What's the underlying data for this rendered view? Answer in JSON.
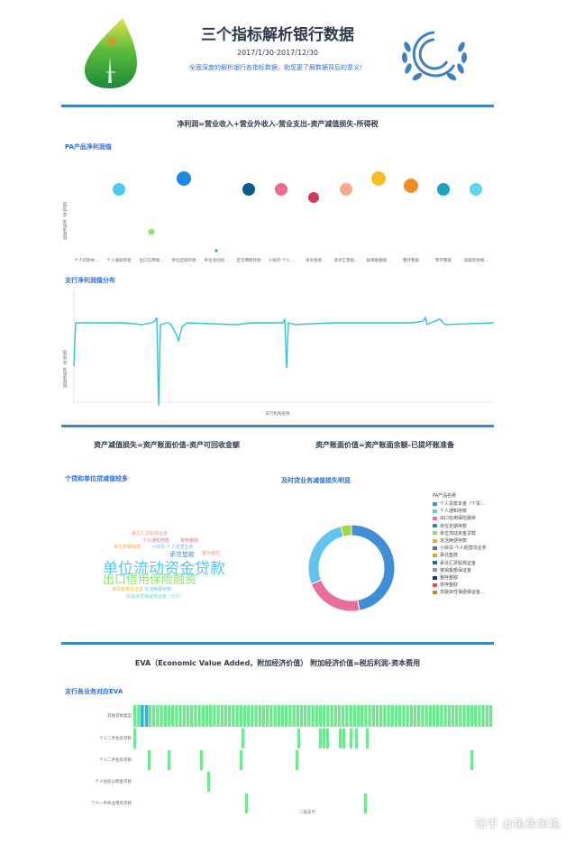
{
  "header": {
    "title": "三个指标解析银行数据",
    "date_range": "2017/1/30-2017/12/30",
    "subtitle": "全面深度的解析银行各指标数据，助您更了解数据背后的意义！"
  },
  "section1": {
    "formula": "净利润=营业收入+营业外收入-营业支出-资产减值损失-所得税",
    "chart1": {
      "title": "PA产品净利润值",
      "ylabel": "指标净利润（平均值）",
      "categories": [
        "个人贷款本...",
        "个人通知存款",
        "出口信用保...",
        "单位定期存款",
        "单位流动资...",
        "定活两便存款",
        "小快贷-个人...",
        "承兑垫款",
        "承兑汇票贴...",
        "按揭金额保...",
        "整存整取",
        "零存整取",
        "非融资性保..."
      ],
      "colors": [
        "#4fc8f3",
        "#8de46a",
        "#1e88e5",
        "#1565c0",
        "#0b5b94",
        "#f06c8b",
        "#d23a5a",
        "#f7a98f",
        "#f5c026",
        "#f08c2a",
        "#1aa3c2",
        "#5bd8f0"
      ]
    },
    "chart2": {
      "title": "支行净利润值分布",
      "ylabel": "指标净利润（平均值）",
      "xlabel": "支行机构名称"
    }
  },
  "section2": {
    "formula_left": "资产减值损失=资产账面价值-资产可回收金额",
    "formula_right": "资产账面价值=资产账面余额-已提坏账准备",
    "wordcloud_title": "个贷和单位贷减值较多",
    "donut_title": "及时贷业务减值损失明显",
    "legend_title": "PA产品名称",
    "legend": [
      {
        "label": "个人贷款本金（个贷...",
        "color": "#3f8ed6"
      },
      {
        "label": "个人通知存款",
        "color": "#62c4ee"
      },
      {
        "label": "出口信用保险融资",
        "color": "#e86f9a"
      },
      {
        "label": "单位定期存款",
        "color": "#2a8c8c"
      },
      {
        "label": "单位流动资金贷款",
        "color": "#9bd36a"
      },
      {
        "label": "定活两便存款",
        "color": "#f4a35f"
      },
      {
        "label": "小快贷-个人经营贷业务",
        "color": "#6d6d6d"
      },
      {
        "label": "承兑垫款",
        "color": "#c7b62d"
      },
      {
        "label": "承兑汇票贴现证金",
        "color": "#1d6e8c"
      },
      {
        "label": "按揭金额保证金",
        "color": "#9b8ec9"
      },
      {
        "label": "整存整取",
        "color": "#1a2f6a"
      },
      {
        "label": "零存整取",
        "color": "#e84a4a"
      },
      {
        "label": "非融资性保函保证金...",
        "color": "#b78a2a"
      }
    ],
    "words": [
      {
        "text": "承兑汇票贴现证金",
        "color": "#f29a7a",
        "size": 5
      },
      {
        "text": "个人通知存款",
        "color": "#e56b8f",
        "size": 5
      },
      {
        "text": "零存整取",
        "color": "#e56b8f",
        "size": 5
      },
      {
        "text": "小快贷-个人经营业务",
        "color": "#7fb8e6",
        "size": 5
      },
      {
        "text": "单位定期存款",
        "color": "#f7a14a",
        "size": 5
      },
      {
        "text": "承兑垫款",
        "color": "#3f8ed6",
        "size": 7
      },
      {
        "text": "整存整取",
        "color": "#f29a7a",
        "size": 5
      },
      {
        "text": "单位流动资金贷款",
        "color": "#4fc8f3",
        "size": 17
      },
      {
        "text": "出口信用保险融资",
        "color": "#8de46a",
        "size": 13
      },
      {
        "text": "按揭金额保证金",
        "color": "#f5c026",
        "size": 5
      },
      {
        "text": "定活两便存款",
        "color": "#4fc8f3",
        "size": 5
      },
      {
        "text": "非融资性保函保证金（分行）",
        "color": "#6fd2c4",
        "size": 5
      }
    ],
    "donut": [
      {
        "value": 47,
        "color": "#3f8ed6"
      },
      {
        "value": 22,
        "color": "#e86f9a"
      },
      {
        "value": 27,
        "color": "#62c4ee"
      },
      {
        "value": 4,
        "color": "#a6d43a"
      }
    ]
  },
  "section3": {
    "formula": "EVA（Economic Value Added，附加经济价值） 附加经济价值=税后利润-资本费用",
    "chart_title": "支行各业务对应EVA",
    "rows": [
      "其他贷款类型",
      "个人二手住房贷款",
      "个人二手住房贷款",
      "个人住房公积金贷款",
      "个人一手商业用房贷款"
    ],
    "xlabel": "二级支行"
  },
  "watermark": "知乎 @鱼鱼鱼鱼"
}
